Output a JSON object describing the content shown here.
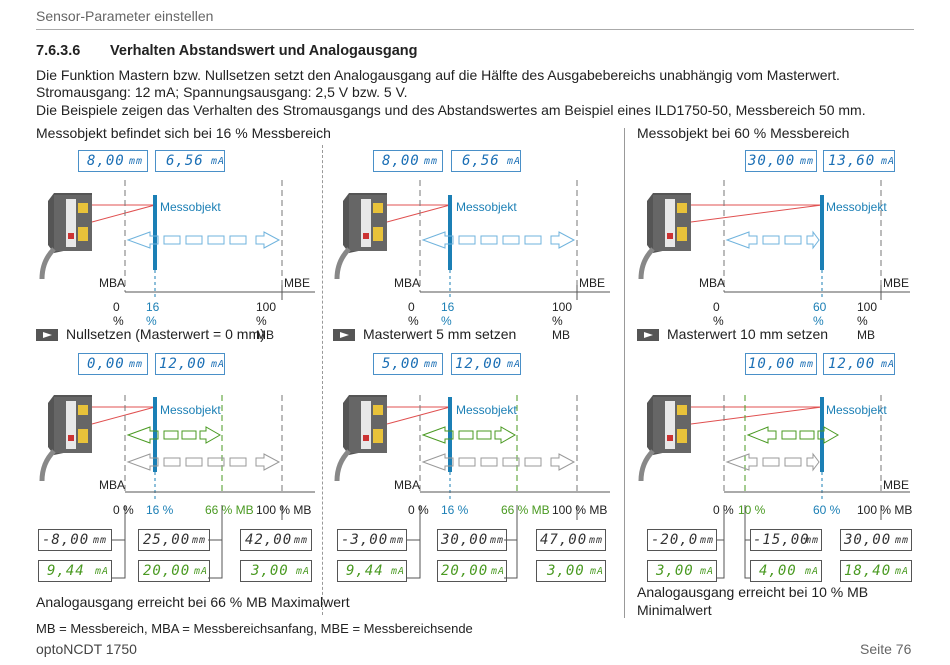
{
  "header": {
    "title": "Sensor-Parameter einstellen"
  },
  "section": {
    "number": "7.6.3.6",
    "title": "Verhalten Abstandswert und Analogausgang",
    "para1": "Die Funktion Mastern bzw. Nullsetzen setzt den Analogausgang auf die Hälfte des Ausgabebereichs unabhängig vom Masterwert.",
    "para2": "Stromausgang: 12 mA; Spannungsausgang: 2,5 V bzw. 5 V.",
    "para3": "Die Beispiele zeigen das Verhalten des Stromausgangs und des Abstandswertes am Beispiel eines ILD1750-50, Messbereich 50 mm."
  },
  "col1": {
    "title": "Messobjekt befindet sich bei 16 % Messbereich",
    "display_top": {
      "value": "8,00",
      "unit": "mm",
      "value2": "6,56",
      "unit2": "mA"
    },
    "step": "Nullsetzen (Masterwert = 0 mm)",
    "display_mid": {
      "value": "0,00",
      "unit": "mm",
      "value2": "12,00",
      "unit2": "mA"
    },
    "lcd_row1": [
      {
        "v": "-8,00",
        "u": "mm"
      },
      {
        "v": "25,00",
        "u": "mm"
      },
      {
        "v": "42,00",
        "u": "mm"
      }
    ],
    "lcd_row2": [
      {
        "v": "9,44",
        "u": "mA"
      },
      {
        "v": "20,00",
        "u": "mA"
      },
      {
        "v": "3,00",
        "u": "mA"
      }
    ],
    "note": "Analogausgang erreicht bei 66 % MB Maximalwert"
  },
  "col2": {
    "display_top": {
      "value": "8,00",
      "unit": "mm",
      "value2": "6,56",
      "unit2": "mA"
    },
    "step": "Masterwert 5 mm setzen",
    "display_mid": {
      "value": "5,00",
      "unit": "mm",
      "value2": "12,00",
      "unit2": "mA"
    },
    "lcd_row1": [
      {
        "v": "-3,00",
        "u": "mm"
      },
      {
        "v": "30,00",
        "u": "mm"
      },
      {
        "v": "47,00",
        "u": "mm"
      }
    ],
    "lcd_row2": [
      {
        "v": "9,44",
        "u": "mA"
      },
      {
        "v": "20,00",
        "u": "mA"
      },
      {
        "v": "3,00",
        "u": "mA"
      }
    ]
  },
  "col3": {
    "title": "Messobjekt bei 60 % Messbereich",
    "display_top": {
      "value": "30,00",
      "unit": "mm",
      "value2": "13,60",
      "unit2": "mA"
    },
    "step": "Masterwert 10 mm setzen",
    "display_mid": {
      "value": "10,00",
      "unit": "mm",
      "value2": "12,00",
      "unit2": "mA"
    },
    "lcd_row1": [
      {
        "v": "-20,0",
        "u": "mm"
      },
      {
        "v": "-15,00",
        "u": "mm"
      },
      {
        "v": "30,00",
        "u": "mm"
      }
    ],
    "lcd_row2": [
      {
        "v": "3,00",
        "u": "mA"
      },
      {
        "v": "4,00",
        "u": "mA"
      },
      {
        "v": "18,40",
        "u": "mA"
      }
    ],
    "note1": "Analogausgang erreicht bei 10 % MB",
    "note2": "Minimalwert"
  },
  "labels": {
    "target": "Messobjekt",
    "mba": "MBA",
    "mbe": "MBE",
    "p0": "0 %",
    "p16": "16 %",
    "p60": "60 %",
    "p10": "10 %",
    "p66mb": "66 % MB",
    "p100mb": "100 % MB"
  },
  "footer": {
    "legend": "MB = Messbereich, MBA = Messbereichsanfang, MBE = Messbereichsende",
    "product": "optoNCDT 1750",
    "page": "Seite 76"
  },
  "colors": {
    "accent": "#1b7fb5",
    "green": "#4a9a22",
    "blue_arrow": "#6fb3dd",
    "laser": "#e05050"
  }
}
